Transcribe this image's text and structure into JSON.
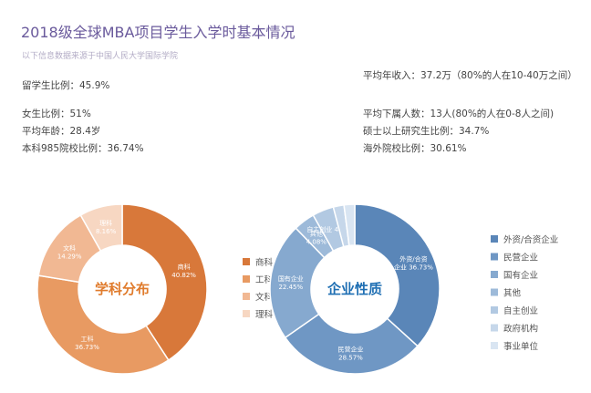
{
  "title": "2018级全球MBA项目学生入学时基本情况",
  "subtitle": "以下信息数据来源于中国人民大学国际学院",
  "stats_left": [
    {
      "text": "留学生比例：45.9%"
    },
    {
      "text": "女生比例：51%"
    },
    {
      "text": "平均年龄：28.4岁"
    },
    {
      "text": "本科985院校比例：36.74%"
    }
  ],
  "stats_right": [
    {
      "text": "平均年收入：37.2万（80%的人在10-40万之间）"
    },
    {
      "text": "平均下属人数：13人(80%的人在0-8人之间)"
    },
    {
      "text": "硕士以上研究生比例：34.7%"
    },
    {
      "text": "海外院校比例：30.61%"
    }
  ],
  "chart_data": [
    {
      "type": "pie",
      "title": "学科分布",
      "categories": [
        "商科",
        "工科",
        "文科",
        "理科"
      ],
      "values": [
        40.82,
        36.73,
        14.29,
        8.16
      ],
      "slice_labels": [
        "商科\n40.82%",
        "工科\n36.73%",
        "文科\n14.29%",
        "理科\n8.16%"
      ],
      "colors": [
        "#d8783a",
        "#e89a62",
        "#f1b893",
        "#f7d7c2"
      ],
      "title_color": "#e07b2c",
      "legend": [
        "商科",
        "工科",
        "文科",
        "理科"
      ],
      "legend_position": "right"
    },
    {
      "type": "pie",
      "title": "企业性质",
      "categories": [
        "外资/合资企业",
        "民营企业",
        "国有企业",
        "其他",
        "自主创业",
        "政府机构",
        "事业单位"
      ],
      "values": [
        36.73,
        28.57,
        22.45,
        4.08,
        4.08,
        2.04,
        2.04
      ],
      "slice_labels": [
        "外资/合资\n企业 36.73%",
        "民营企业\n28.57%",
        "国有企业\n22.45%",
        "其他\n4.08%",
        "自主创业 4.08%",
        "",
        ""
      ],
      "colors": [
        "#5a86b8",
        "#6f97c4",
        "#86a9cf",
        "#9dbad9",
        "#b2c9e2",
        "#c6d7ea",
        "#d9e5f2"
      ],
      "title_color": "#1f6fb3",
      "legend": [
        "外资/合资企业",
        "民营企业",
        "国有企业",
        "其他",
        "自主创业",
        "政府机构",
        "事业单位"
      ],
      "legend_position": "right"
    }
  ]
}
